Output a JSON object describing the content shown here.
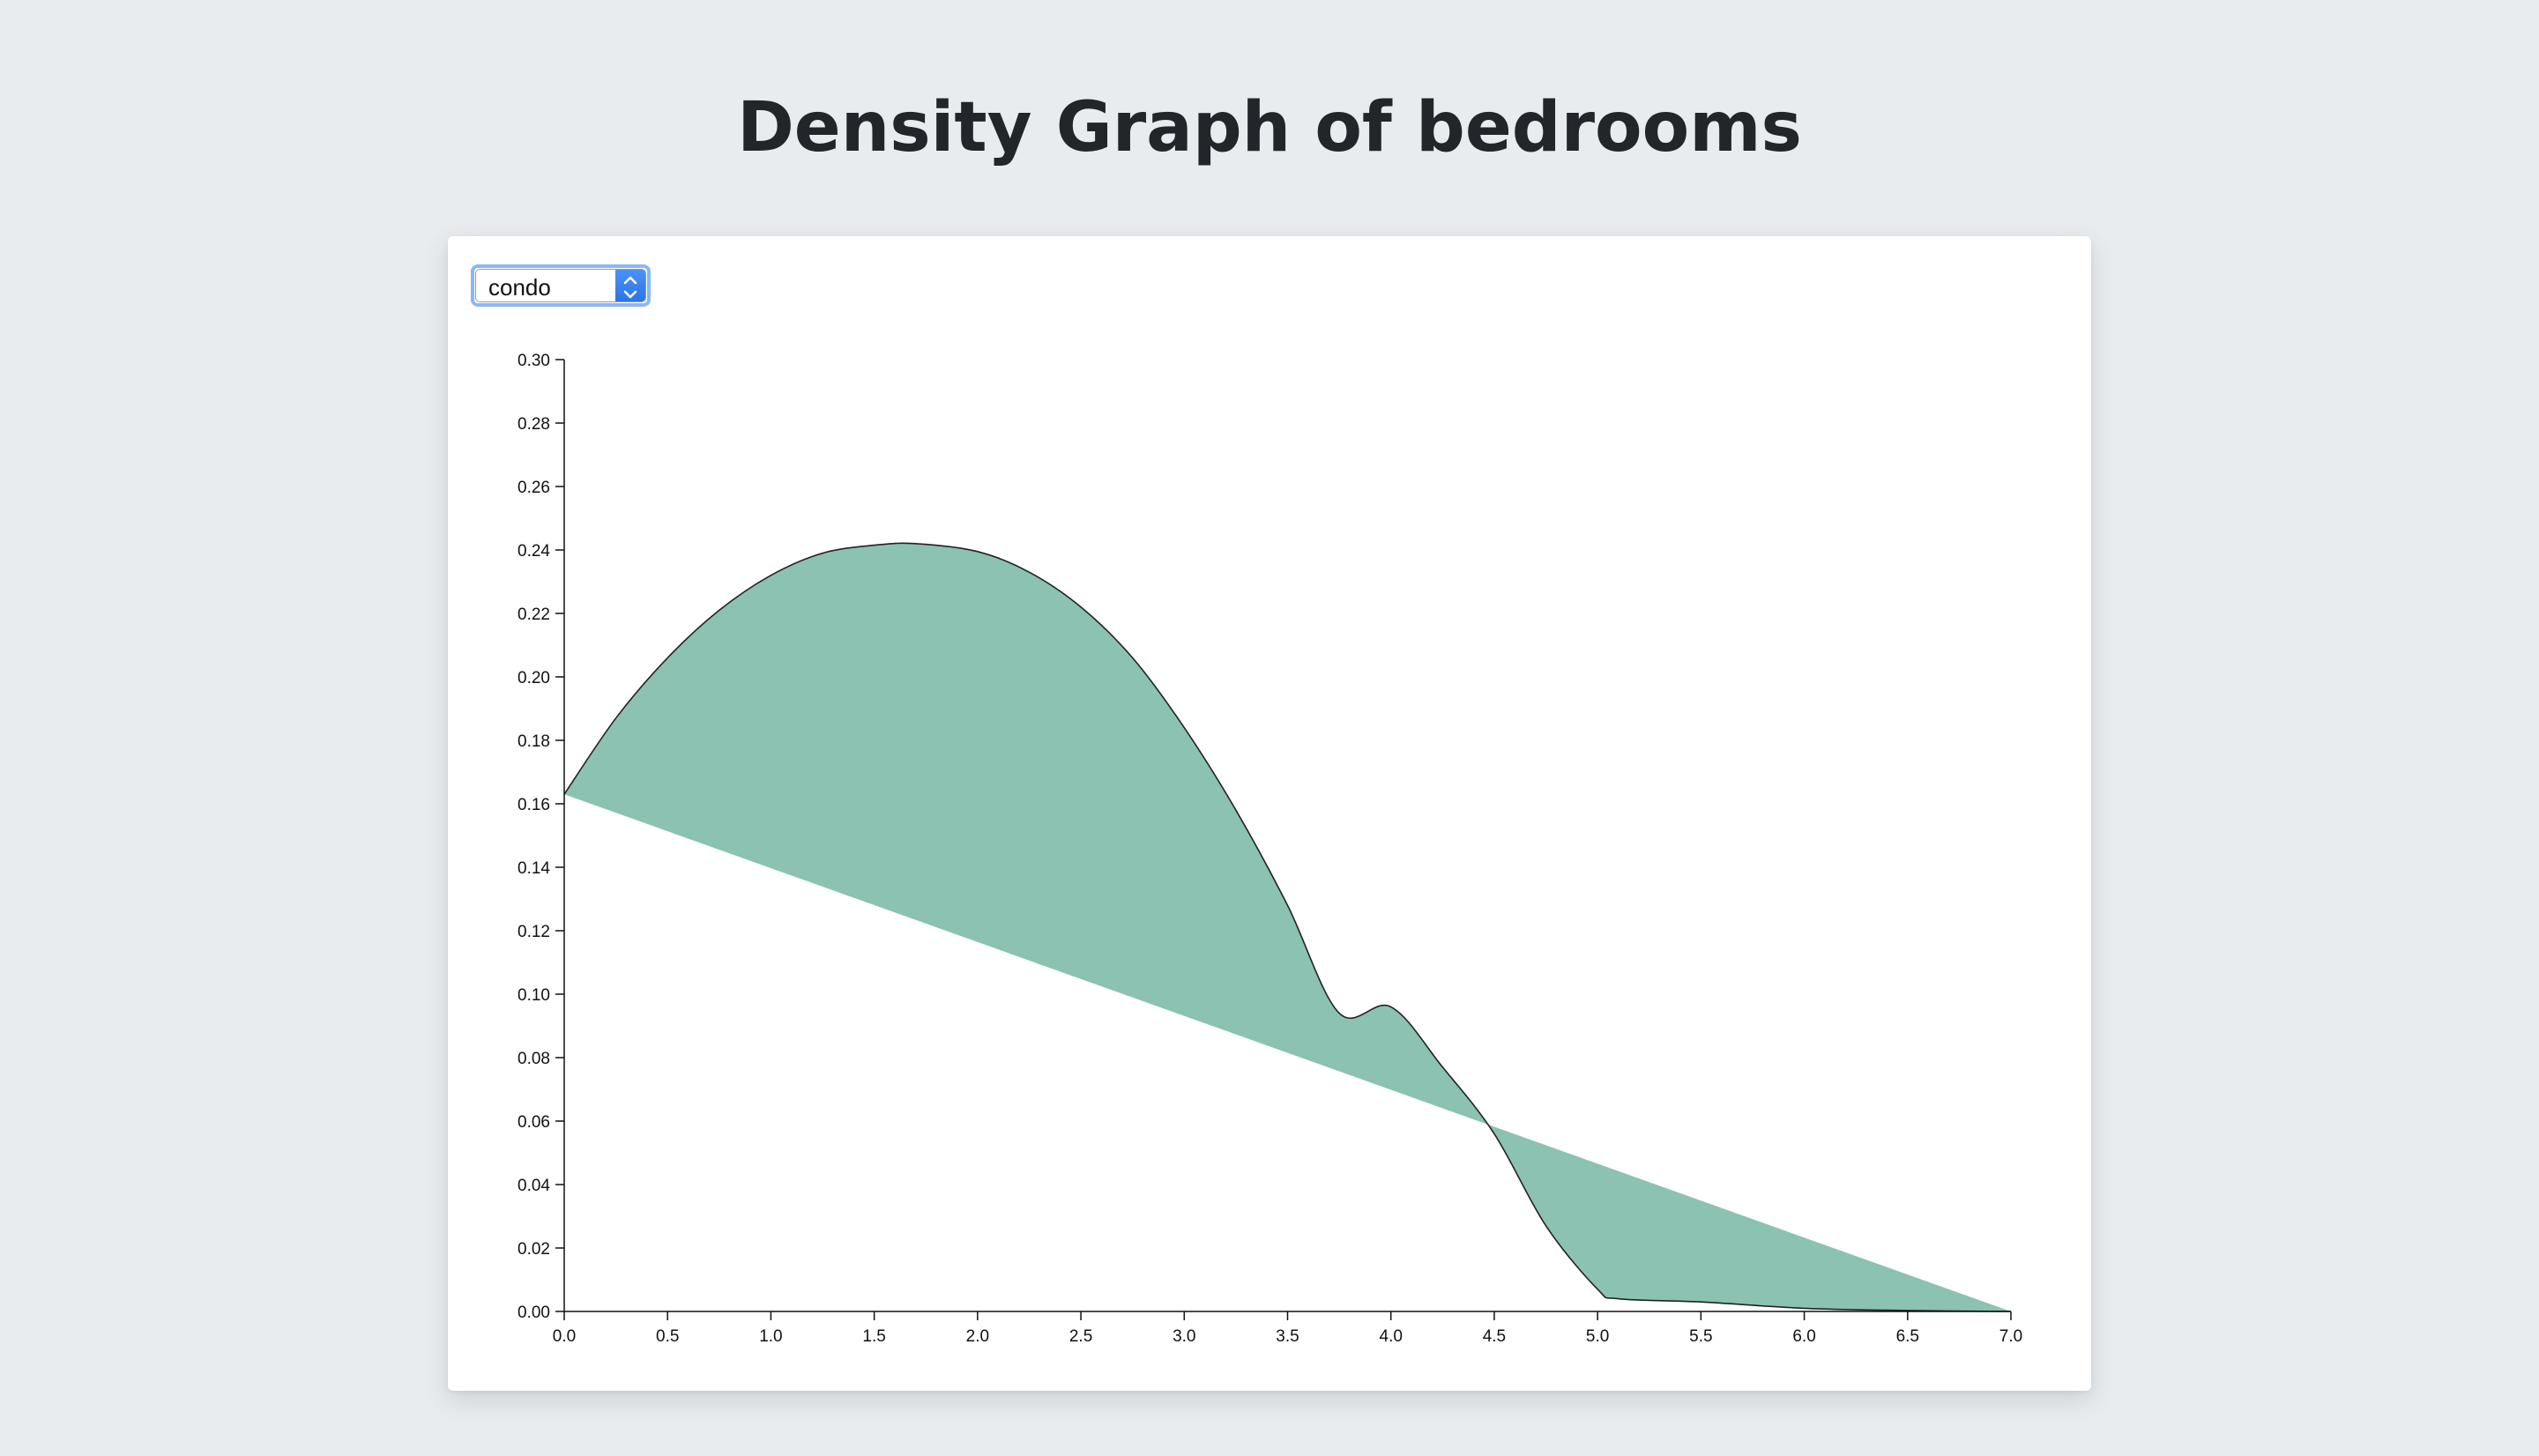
{
  "page": {
    "title": "Density Graph of bedrooms"
  },
  "controls": {
    "property_type_selected": "condo"
  },
  "colors": {
    "background": "#e8ecef",
    "area_fill": "#8bc2b2",
    "line": "#222222"
  },
  "chart_data": {
    "type": "area",
    "title": "Density Graph of bedrooms",
    "xlabel": "",
    "ylabel": "",
    "xlim": [
      0,
      7
    ],
    "ylim": [
      0,
      0.3
    ],
    "grid": false,
    "x_ticks": [
      "0.0",
      "0.5",
      "1.0",
      "1.5",
      "2.0",
      "2.5",
      "3.0",
      "3.5",
      "4.0",
      "4.5",
      "5.0",
      "5.5",
      "6.0",
      "6.5",
      "7.0"
    ],
    "y_ticks": [
      "0.00",
      "0.02",
      "0.04",
      "0.06",
      "0.08",
      "0.10",
      "0.12",
      "0.14",
      "0.16",
      "0.18",
      "0.20",
      "0.22",
      "0.24",
      "0.26",
      "0.28",
      "0.30"
    ],
    "series": [
      {
        "x": [
          0.0,
          0.25,
          0.5,
          0.75,
          1.0,
          1.25,
          1.5,
          1.7,
          2.0,
          2.25,
          2.5,
          2.75,
          3.0,
          3.25,
          3.5,
          3.75,
          4.0,
          4.25,
          4.5,
          4.75,
          5.0,
          5.1,
          5.5,
          6.0,
          6.5,
          7.0
        ],
        "y": [
          0.163,
          0.187,
          0.206,
          0.221,
          0.232,
          0.239,
          0.2415,
          0.242,
          0.2395,
          0.233,
          0.222,
          0.206,
          0.184,
          0.158,
          0.128,
          0.094,
          0.096,
          0.077,
          0.056,
          0.027,
          0.007,
          0.004,
          0.003,
          0.001,
          0.0003,
          0.0
        ]
      }
    ]
  }
}
